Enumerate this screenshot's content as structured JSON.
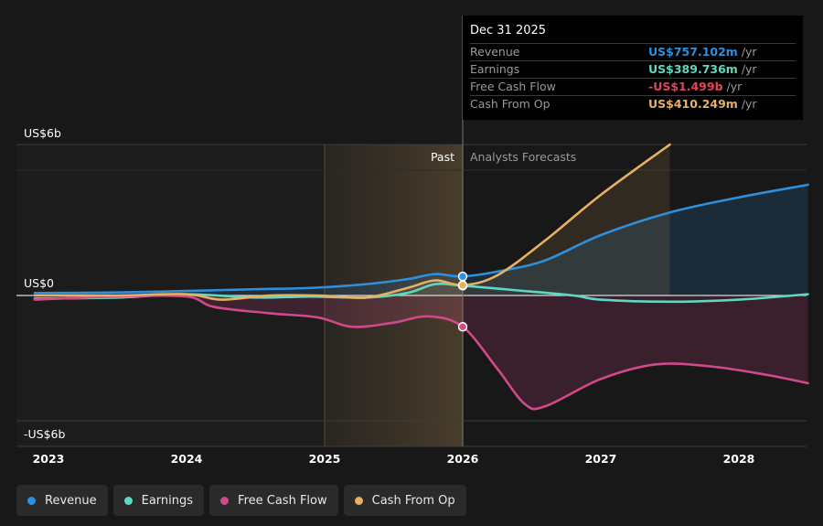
{
  "chart_data": {
    "type": "line",
    "x_ticks": [
      "2023",
      "2024",
      "2025",
      "2026",
      "2027",
      "2028"
    ],
    "y_labels": [
      "US$6b",
      "US$0",
      "-US$6b"
    ],
    "ylim": [
      -6,
      6
    ],
    "past_label": "Past",
    "forecast_label": "Analysts Forecasts",
    "series": [
      {
        "name": "Revenue",
        "color": "#2e8fdc",
        "x": [
          2022.9,
          2023.5,
          2024.0,
          2024.5,
          2024.9,
          2025.3,
          2025.6,
          2025.8,
          2026.0,
          2026.3,
          2026.6,
          2027.0,
          2027.5,
          2028.0,
          2028.5
        ],
        "y": [
          0.1,
          0.12,
          0.18,
          0.25,
          0.3,
          0.45,
          0.65,
          0.85,
          0.757,
          1.0,
          1.4,
          2.4,
          3.3,
          3.9,
          4.4
        ]
      },
      {
        "name": "Earnings",
        "color": "#5dd9c1",
        "x": [
          2022.9,
          2023.5,
          2024.0,
          2024.5,
          2024.9,
          2025.3,
          2025.6,
          2025.8,
          2026.0,
          2026.4,
          2026.8,
          2027.0,
          2027.5,
          2028.0,
          2028.5
        ],
        "y": [
          -0.15,
          -0.1,
          0.05,
          -0.1,
          -0.05,
          -0.1,
          0.1,
          0.45,
          0.39,
          0.2,
          0.0,
          -0.2,
          -0.3,
          -0.2,
          0.05
        ]
      },
      {
        "name": "Free Cash Flow",
        "color": "#d2498b",
        "x": [
          2022.9,
          2023.5,
          2024.0,
          2024.2,
          2024.6,
          2024.95,
          2025.2,
          2025.5,
          2025.75,
          2026.0,
          2026.25,
          2026.45,
          2026.6,
          2027.0,
          2027.4,
          2027.8,
          2028.2,
          2028.5
        ],
        "y": [
          -0.2,
          -0.05,
          -0.05,
          -0.55,
          -0.85,
          -1.05,
          -1.5,
          -1.3,
          -1.0,
          -1.499,
          -3.5,
          -5.2,
          -5.3,
          -4.0,
          -3.3,
          -3.4,
          -3.8,
          -4.2
        ]
      },
      {
        "name": "Cash From Op",
        "color": "#e8b064",
        "x": [
          2022.9,
          2023.5,
          2024.0,
          2024.25,
          2024.6,
          2024.95,
          2025.3,
          2025.6,
          2025.8,
          2026.0,
          2026.25,
          2026.6,
          2027.0,
          2027.5
        ],
        "y": [
          0.0,
          0.0,
          0.05,
          -0.2,
          0.0,
          0.0,
          -0.1,
          0.3,
          0.6,
          0.41,
          0.8,
          2.2,
          4.0,
          6.0
        ]
      }
    ]
  },
  "tooltip": {
    "date": "Dec 31 2025",
    "rows": [
      {
        "label": "Revenue",
        "value": "US$757.102m",
        "unit": "/yr",
        "color": "#2e8fdc"
      },
      {
        "label": "Earnings",
        "value": "US$389.736m",
        "unit": "/yr",
        "color": "#5dd9c1"
      },
      {
        "label": "Free Cash Flow",
        "value": "-US$1.499b",
        "unit": "/yr",
        "color": "#e0455a"
      },
      {
        "label": "Cash From Op",
        "value": "US$410.249m",
        "unit": "/yr",
        "color": "#e8b064"
      }
    ]
  },
  "legend": [
    {
      "label": "Revenue",
      "color": "#2e8fdc"
    },
    {
      "label": "Earnings",
      "color": "#5dd9c1"
    },
    {
      "label": "Free Cash Flow",
      "color": "#d2498b"
    },
    {
      "label": "Cash From Op",
      "color": "#e8b064"
    }
  ]
}
